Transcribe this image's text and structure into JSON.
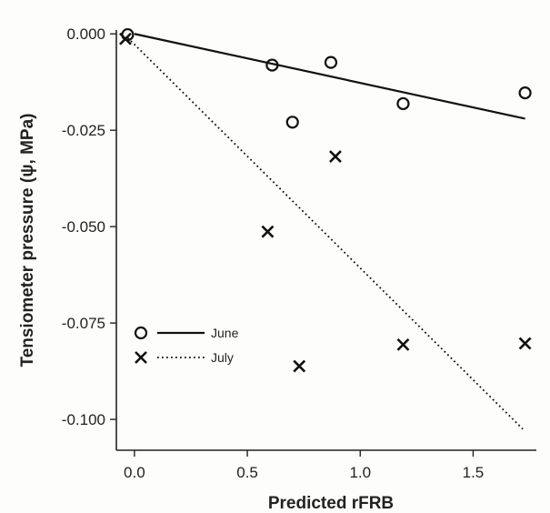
{
  "chart_data": {
    "type": "scatter",
    "title": "",
    "xlabel": "Predicted rFRB",
    "ylabel": "Tensiometer pressure (ψ, MPa)",
    "xlim": [
      -0.08,
      1.78
    ],
    "ylim": [
      -0.108,
      0.001
    ],
    "x_ticks": [
      "0.0",
      "0.5",
      "1.0",
      "1.5"
    ],
    "x_tick_values": [
      0.0,
      0.5,
      1.0,
      1.5
    ],
    "y_ticks": [
      "0.000",
      "-0.025",
      "-0.050",
      "-0.075",
      "-0.100"
    ],
    "y_tick_values": [
      0.0,
      -0.025,
      -0.05,
      -0.075,
      -0.1
    ],
    "grid": false,
    "legend_position": "lower-left",
    "series": [
      {
        "name": "June",
        "marker": "circle",
        "line_style": "solid",
        "color": "#111111",
        "x": [
          -0.03,
          0.61,
          0.7,
          0.87,
          1.19,
          1.73
        ],
        "y": [
          -0.0002,
          -0.0081,
          -0.0229,
          -0.0074,
          -0.0181,
          -0.0153
        ],
        "fit_line": {
          "x": [
            0.0,
            1.73
          ],
          "y": [
            0.0,
            -0.022
          ]
        }
      },
      {
        "name": "July",
        "marker": "x",
        "line_style": "dotted",
        "color": "#111111",
        "x": [
          -0.04,
          0.59,
          0.73,
          0.89,
          1.19,
          1.73
        ],
        "y": [
          -0.0013,
          -0.0513,
          -0.0862,
          -0.0318,
          -0.0806,
          -0.0803
        ],
        "fit_line": {
          "x": [
            -0.03,
            1.72
          ],
          "y": [
            -0.001,
            -0.1025
          ]
        }
      }
    ]
  }
}
